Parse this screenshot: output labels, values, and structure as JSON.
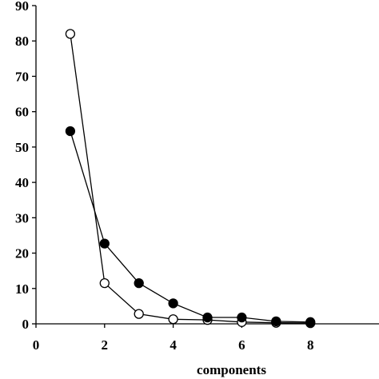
{
  "chart_data": {
    "type": "line",
    "xlabel": "components",
    "ylabel": "",
    "xlim": [
      0,
      10
    ],
    "ylim": [
      0,
      90
    ],
    "xticks": [
      0,
      2,
      4,
      6,
      8
    ],
    "yticks": [
      0,
      10,
      20,
      30,
      40,
      50,
      60,
      70,
      80,
      90
    ],
    "grid": false,
    "series": [
      {
        "marker": "open-circle",
        "x": [
          1,
          2,
          3,
          4,
          5,
          6,
          7,
          8
        ],
        "y": [
          82,
          11.5,
          2.8,
          1.3,
          1.1,
          0.5,
          0.3,
          0.2
        ]
      },
      {
        "marker": "filled-circle",
        "x": [
          1,
          2,
          3,
          4,
          5,
          6,
          7,
          8
        ],
        "y": [
          54.5,
          22.7,
          11.5,
          5.8,
          1.8,
          1.8,
          0.7,
          0.5
        ]
      }
    ]
  }
}
